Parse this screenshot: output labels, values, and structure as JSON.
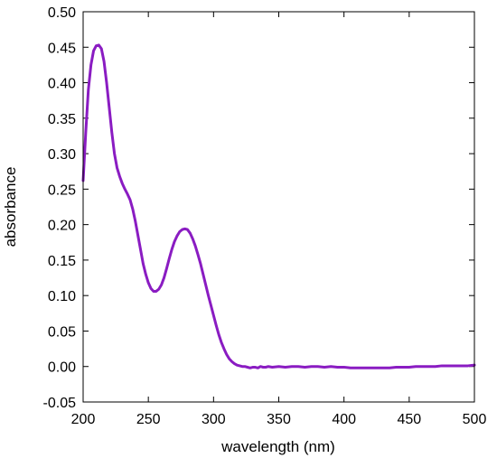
{
  "chart_data": {
    "type": "line",
    "title": "",
    "xlabel": "wavelength (nm)",
    "ylabel": "absorbance",
    "xlim": [
      200,
      500
    ],
    "ylim": [
      -0.05,
      0.5
    ],
    "xticks": [
      200,
      250,
      300,
      350,
      400,
      450,
      500
    ],
    "xtick_labels": [
      "200",
      "250",
      "300",
      "350",
      "400",
      "450",
      "500"
    ],
    "yticks": [
      -0.05,
      0.0,
      0.05,
      0.1,
      0.15,
      0.2,
      0.25,
      0.3,
      0.35,
      0.4,
      0.45,
      0.5
    ],
    "ytick_labels": [
      "-0.05",
      "0.00",
      "0.05",
      "0.10",
      "0.15",
      "0.20",
      "0.25",
      "0.30",
      "0.35",
      "0.40",
      "0.45",
      "0.50"
    ],
    "grid": false,
    "legend": "none",
    "series": [
      {
        "color": "#8a1cc2",
        "x": [
          200,
          202,
          204,
          206,
          208,
          210,
          212,
          214,
          216,
          218,
          220,
          222,
          224,
          226,
          228,
          230,
          232,
          234,
          236,
          238,
          240,
          242,
          244,
          246,
          248,
          250,
          252,
          254,
          256,
          258,
          260,
          262,
          264,
          266,
          268,
          270,
          272,
          274,
          276,
          278,
          280,
          282,
          284,
          286,
          288,
          290,
          292,
          294,
          296,
          298,
          300,
          302,
          304,
          306,
          308,
          310,
          312,
          314,
          316,
          318,
          320,
          322,
          324,
          326,
          328,
          330,
          332,
          334,
          336,
          338,
          340,
          342,
          345,
          350,
          355,
          360,
          365,
          370,
          375,
          380,
          385,
          390,
          395,
          400,
          405,
          410,
          415,
          420,
          425,
          430,
          435,
          440,
          445,
          450,
          455,
          460,
          465,
          470,
          475,
          480,
          485,
          490,
          495,
          500
        ],
        "y": [
          0.262,
          0.33,
          0.39,
          0.425,
          0.445,
          0.452,
          0.453,
          0.448,
          0.43,
          0.4,
          0.365,
          0.33,
          0.3,
          0.28,
          0.268,
          0.258,
          0.25,
          0.243,
          0.235,
          0.222,
          0.205,
          0.185,
          0.165,
          0.145,
          0.13,
          0.118,
          0.11,
          0.106,
          0.106,
          0.109,
          0.115,
          0.125,
          0.138,
          0.152,
          0.165,
          0.176,
          0.184,
          0.19,
          0.193,
          0.194,
          0.193,
          0.188,
          0.18,
          0.17,
          0.158,
          0.145,
          0.13,
          0.115,
          0.1,
          0.086,
          0.072,
          0.058,
          0.045,
          0.034,
          0.025,
          0.017,
          0.011,
          0.007,
          0.004,
          0.002,
          0.001,
          0.0,
          0.0,
          -0.001,
          -0.002,
          -0.001,
          -0.001,
          -0.002,
          0.0,
          -0.001,
          -0.001,
          0.0,
          -0.001,
          0.0,
          -0.001,
          0.0,
          0.0,
          -0.001,
          0.0,
          0.0,
          -0.001,
          0.0,
          -0.001,
          -0.001,
          -0.002,
          -0.002,
          -0.002,
          -0.002,
          -0.002,
          -0.002,
          -0.002,
          -0.001,
          -0.001,
          -0.001,
          0.0,
          0.0,
          0.0,
          0.0,
          0.001,
          0.001,
          0.001,
          0.001,
          0.001,
          0.002
        ]
      }
    ]
  }
}
